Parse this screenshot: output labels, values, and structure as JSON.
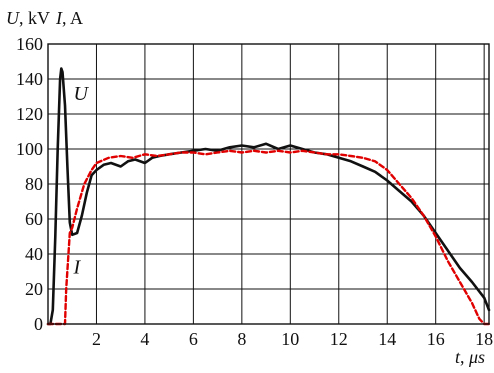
{
  "chart_data": {
    "type": "line",
    "ylabel": {
      "var1": "U",
      "unit1": ", kV",
      "var2": "I",
      "unit2": ", A"
    },
    "xlabel": {
      "var": "t",
      "sep": ", ",
      "unit": "μs"
    },
    "xlim": [
      0,
      18.2
    ],
    "ylim": [
      0,
      160
    ],
    "x_ticks": [
      2,
      4,
      6,
      8,
      10,
      12,
      14,
      16,
      18
    ],
    "y_ticks": [
      0,
      20,
      40,
      60,
      80,
      100,
      120,
      140,
      160
    ],
    "grid": true,
    "annotations": [
      {
        "text": "U",
        "series": "U",
        "x": 1.05,
        "y": 132
      },
      {
        "text": "I",
        "series": "I",
        "x": 1.05,
        "y": 33
      }
    ],
    "series": [
      {
        "name": "U",
        "color": "#111111",
        "style": "solid",
        "points": [
          [
            0.0,
            0
          ],
          [
            0.1,
            0
          ],
          [
            0.2,
            8
          ],
          [
            0.3,
            50
          ],
          [
            0.4,
            100
          ],
          [
            0.5,
            140
          ],
          [
            0.55,
            146
          ],
          [
            0.6,
            144
          ],
          [
            0.7,
            125
          ],
          [
            0.8,
            90
          ],
          [
            0.9,
            58
          ],
          [
            1.0,
            51
          ],
          [
            1.2,
            52
          ],
          [
            1.4,
            62
          ],
          [
            1.6,
            75
          ],
          [
            1.8,
            85
          ],
          [
            2.0,
            88
          ],
          [
            2.3,
            91
          ],
          [
            2.6,
            92
          ],
          [
            3.0,
            90
          ],
          [
            3.3,
            93
          ],
          [
            3.6,
            94
          ],
          [
            4.0,
            92
          ],
          [
            4.3,
            95
          ],
          [
            4.6,
            96
          ],
          [
            5.0,
            97
          ],
          [
            5.5,
            98
          ],
          [
            6.0,
            99
          ],
          [
            6.5,
            100
          ],
          [
            7.0,
            99
          ],
          [
            7.5,
            101
          ],
          [
            8.0,
            102
          ],
          [
            8.5,
            101
          ],
          [
            9.0,
            103
          ],
          [
            9.5,
            100
          ],
          [
            10.0,
            102
          ],
          [
            10.5,
            100
          ],
          [
            11.0,
            98
          ],
          [
            11.5,
            97
          ],
          [
            12.0,
            95
          ],
          [
            12.5,
            93
          ],
          [
            13.0,
            90
          ],
          [
            13.5,
            87
          ],
          [
            14.0,
            82
          ],
          [
            14.5,
            76
          ],
          [
            15.0,
            70
          ],
          [
            15.5,
            62
          ],
          [
            16.0,
            52
          ],
          [
            16.5,
            42
          ],
          [
            17.0,
            32
          ],
          [
            17.5,
            24
          ],
          [
            18.0,
            15
          ],
          [
            18.2,
            8
          ]
        ]
      },
      {
        "name": "I",
        "color": "#e00000",
        "style": "dashed",
        "points": [
          [
            0.0,
            0
          ],
          [
            0.5,
            0
          ],
          [
            0.7,
            0
          ],
          [
            0.75,
            20
          ],
          [
            0.9,
            52
          ],
          [
            1.0,
            55
          ],
          [
            1.2,
            66
          ],
          [
            1.5,
            80
          ],
          [
            1.8,
            88
          ],
          [
            2.0,
            92
          ],
          [
            2.5,
            95
          ],
          [
            3.0,
            96
          ],
          [
            3.5,
            95
          ],
          [
            4.0,
            97
          ],
          [
            4.5,
            96
          ],
          [
            5.0,
            97
          ],
          [
            5.5,
            98
          ],
          [
            6.0,
            98
          ],
          [
            6.5,
            97
          ],
          [
            7.0,
            98
          ],
          [
            7.5,
            99
          ],
          [
            8.0,
            98
          ],
          [
            8.5,
            99
          ],
          [
            9.0,
            98
          ],
          [
            9.5,
            99
          ],
          [
            10.0,
            98
          ],
          [
            10.5,
            99
          ],
          [
            11.0,
            98
          ],
          [
            11.5,
            97
          ],
          [
            12.0,
            97
          ],
          [
            12.5,
            96
          ],
          [
            13.0,
            95
          ],
          [
            13.5,
            93
          ],
          [
            14.0,
            88
          ],
          [
            14.5,
            80
          ],
          [
            15.0,
            72
          ],
          [
            15.5,
            62
          ],
          [
            16.0,
            50
          ],
          [
            16.5,
            36
          ],
          [
            17.0,
            24
          ],
          [
            17.5,
            12
          ],
          [
            17.8,
            3
          ],
          [
            18.0,
            0
          ],
          [
            18.2,
            0
          ]
        ]
      }
    ]
  }
}
